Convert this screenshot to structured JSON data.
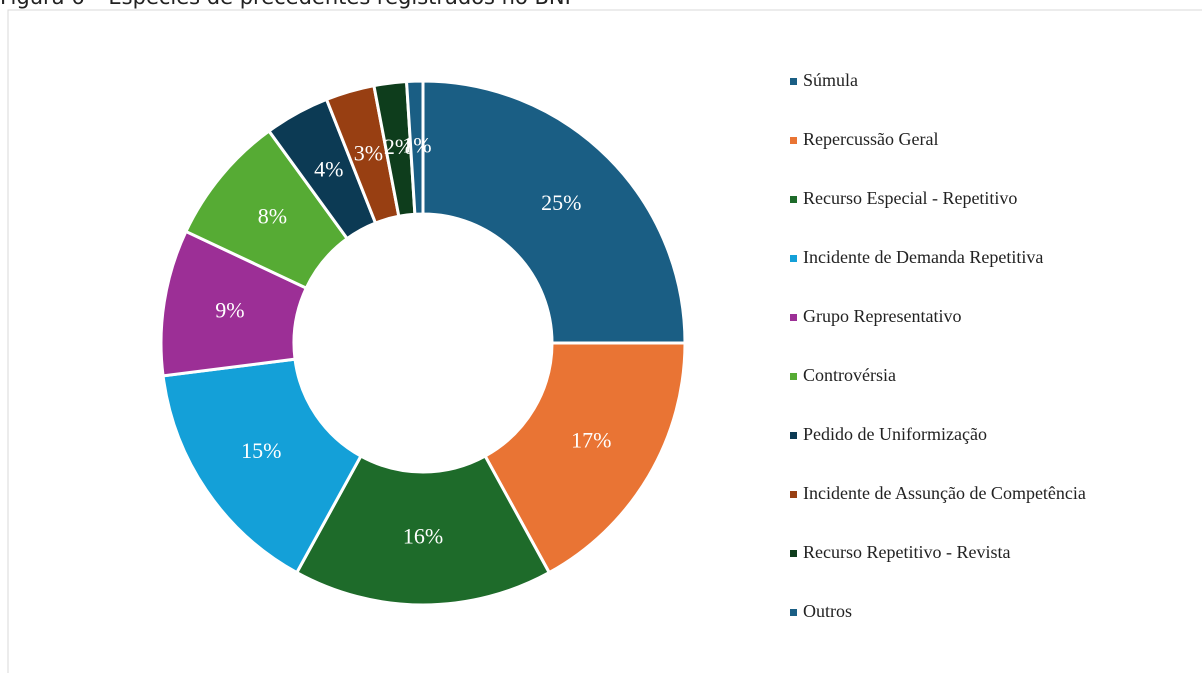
{
  "chart_data": {
    "type": "pie",
    "title": "Figura 6 – Espécies de precedentes registrados no BNP",
    "categories": [
      "Súmula",
      "Repercussão Geral",
      "Recurso Especial - Repetitivo",
      "Incidente de Demanda Repetitiva",
      "Grupo Representativo",
      "Controvérsia",
      "Pedido de Uniformização",
      "Incidente de Assunção de Competência",
      "Recurso Repetitivo - Revista",
      "Outros"
    ],
    "values": [
      25,
      17,
      16,
      15,
      9,
      8,
      4,
      3,
      2,
      1
    ],
    "value_labels": [
      "25%",
      "17%",
      "16%",
      "15%",
      "9%",
      "8%",
      "4%",
      "3%",
      "2%",
      "1%"
    ],
    "colors": [
      "#1a5e84",
      "#e97434",
      "#1e6b2a",
      "#14a0d8",
      "#9c2f96",
      "#56ab34",
      "#0c3a54",
      "#983f12",
      "#0e3d1c",
      "#1a5e84"
    ],
    "donut": true,
    "legend": "right"
  }
}
